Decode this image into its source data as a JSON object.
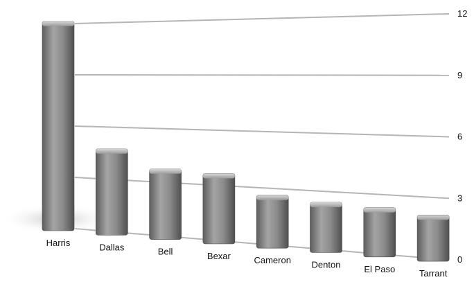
{
  "chart_data": {
    "type": "bar",
    "title": "",
    "xlabel": "",
    "ylabel": "",
    "ylim": [
      0,
      12
    ],
    "yticks": [
      0,
      3,
      6,
      9,
      12
    ],
    "grid": true,
    "legend": "none",
    "categories": [
      "Harris",
      "Dallas",
      "Bell",
      "Bexar",
      "Cameron",
      "Denton",
      "El Paso",
      "Tarrant"
    ],
    "values": [
      12.0,
      4.6,
      3.6,
      3.5,
      2.5,
      2.3,
      2.2,
      2.0
    ],
    "colors": {
      "bar": "#8f8f8f",
      "grid": "#b5b5b5",
      "text": "#111111"
    }
  }
}
